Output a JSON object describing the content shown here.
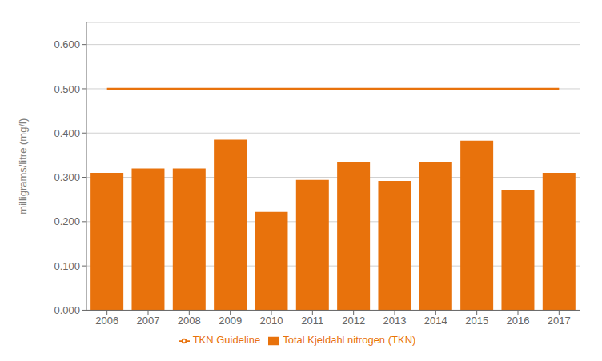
{
  "chart_data": {
    "type": "bar",
    "categories": [
      "2006",
      "2007",
      "2008",
      "2009",
      "2010",
      "2011",
      "2012",
      "2013",
      "2014",
      "2015",
      "2016",
      "2017"
    ],
    "series": [
      {
        "name": "Total Kjeldahl nitrogen (TKN)",
        "type": "bar",
        "color": "#E8720C",
        "values": [
          0.31,
          0.32,
          0.32,
          0.385,
          0.222,
          0.294,
          0.335,
          0.292,
          0.335,
          0.383,
          0.272,
          0.31
        ]
      },
      {
        "name": "TKN Guideline",
        "type": "line",
        "color": "#E8720C",
        "values": [
          0.5,
          0.5,
          0.5,
          0.5,
          0.5,
          0.5,
          0.5,
          0.5,
          0.5,
          0.5,
          0.5,
          0.5
        ]
      }
    ],
    "y_label": "milligrams/litre (mg/l)",
    "ylim": [
      0.0,
      0.65
    ],
    "yticks": [
      {
        "value": 0.0,
        "label": "0.000"
      },
      {
        "value": 0.1,
        "label": "0.100"
      },
      {
        "value": 0.2,
        "label": "0.200"
      },
      {
        "value": 0.3,
        "label": "0.300"
      },
      {
        "value": 0.4,
        "label": "0.400"
      },
      {
        "value": 0.5,
        "label": "0.500"
      },
      {
        "value": 0.6,
        "label": "0.600"
      }
    ],
    "grid": true
  }
}
